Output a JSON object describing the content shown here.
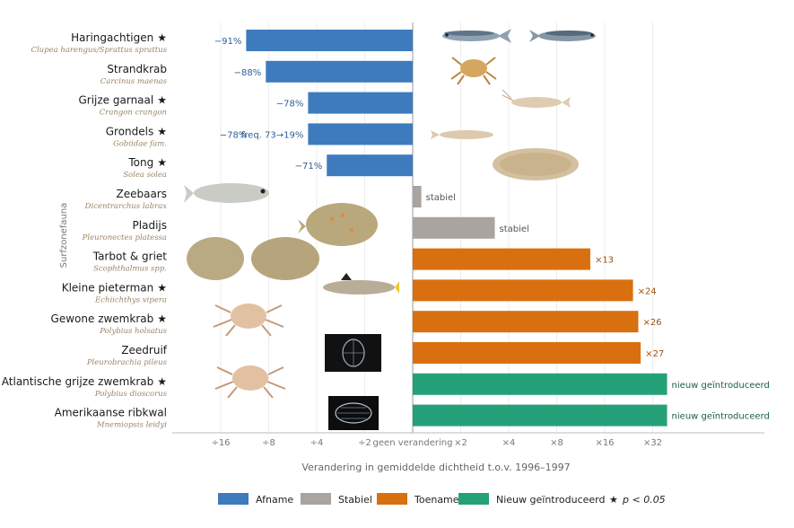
{
  "chart_data": {
    "type": "bar",
    "side_label": "Surfzonefauna",
    "xlabel": "Verandering in gemiddelde dichtheid t.o.v. 1996–1997",
    "x_scale": "log2 fold change",
    "x_ticks": [
      {
        "v": -4,
        "label": "÷16"
      },
      {
        "v": -3,
        "label": "÷8"
      },
      {
        "v": -2,
        "label": "÷4"
      },
      {
        "v": -1,
        "label": "÷2"
      },
      {
        "v": 0,
        "label": "geen verandering"
      },
      {
        "v": 1,
        "label": "×2"
      },
      {
        "v": 2,
        "label": "×4"
      },
      {
        "v": 3,
        "label": "×8"
      },
      {
        "v": 4,
        "label": "×16"
      },
      {
        "v": 5,
        "label": "×32"
      }
    ],
    "xlim": [
      -4.9,
      7.3
    ],
    "grid": true,
    "legend_position": "bottom",
    "legend": [
      {
        "key": "afname",
        "label": "Afname"
      },
      {
        "key": "stabiel",
        "label": "Stabiel"
      },
      {
        "key": "toename",
        "label": "Toename"
      },
      {
        "key": "nieuw",
        "label": "Nieuw geïntroduceerd"
      }
    ],
    "legend_note": {
      "star": "★",
      "text": "p < 0.05"
    },
    "colors": {
      "afname": "#3d7bbd",
      "stabiel": "#a9a4a0",
      "toename": "#d9700f",
      "nieuw": "#25a17a"
    },
    "label_colors": {
      "afname": "#2f5f94",
      "stabiel": "#555555",
      "toename": "#a04f08",
      "nieuw": "#1b5e46"
    },
    "species": [
      {
        "name": "Haringachtigen",
        "star": true,
        "sci": "Clupea harengus/Sprattus sprattus",
        "value": -3.47,
        "category": "afname",
        "label": "−91%"
      },
      {
        "name": "Strandkrab",
        "star": false,
        "sci": "Carcinus maenas",
        "value": -3.06,
        "category": "afname",
        "label": "−88%"
      },
      {
        "name": "Grijze garnaal",
        "star": true,
        "sci": "Crangon crangon",
        "value": -2.18,
        "category": "afname",
        "label": "−78%"
      },
      {
        "name": "Grondels",
        "star": true,
        "sci": "Gobiidae fam.",
        "value": -2.18,
        "category": "afname",
        "label": "−78%",
        "note": "freq. 73→19%"
      },
      {
        "name": "Tong",
        "star": true,
        "sci": "Solea solea",
        "value": -1.79,
        "category": "afname",
        "label": "−71%"
      },
      {
        "name": "Zeebaars",
        "star": false,
        "sci": "Dicentrarchus labrax",
        "value": 0.18,
        "category": "stabiel",
        "label": "stabiel"
      },
      {
        "name": "Pladijs",
        "star": false,
        "sci": "Pleuronectes platessa",
        "value": 1.71,
        "category": "stabiel",
        "label": "stabiel"
      },
      {
        "name": "Tarbot & griet",
        "star": false,
        "sci": "Scophthalmus spp.",
        "value": 3.7,
        "category": "toename",
        "label": "×13"
      },
      {
        "name": "Kleine pieterman",
        "star": true,
        "sci": "Echiichthys vipera",
        "value": 4.59,
        "category": "toename",
        "label": "×24"
      },
      {
        "name": "Gewone zwemkrab",
        "star": true,
        "sci": "Polybius holsatus",
        "value": 4.7,
        "category": "toename",
        "label": "×26"
      },
      {
        "name": "Zeedruif",
        "star": false,
        "sci": "Pleurobrachia pileus",
        "value": 4.75,
        "category": "toename",
        "label": "×27"
      },
      {
        "name": "Atlantische grijze zwemkrab",
        "star": true,
        "sci": "Polybius dioscorus",
        "value": 5.3,
        "category": "nieuw",
        "label": "nieuw geïntroduceerd"
      },
      {
        "name": "Amerikaanse ribkwal",
        "star": false,
        "sci": "Mnemiopsis leidyi",
        "value": 5.3,
        "category": "nieuw",
        "label": "nieuw geïntroduceerd"
      }
    ]
  }
}
